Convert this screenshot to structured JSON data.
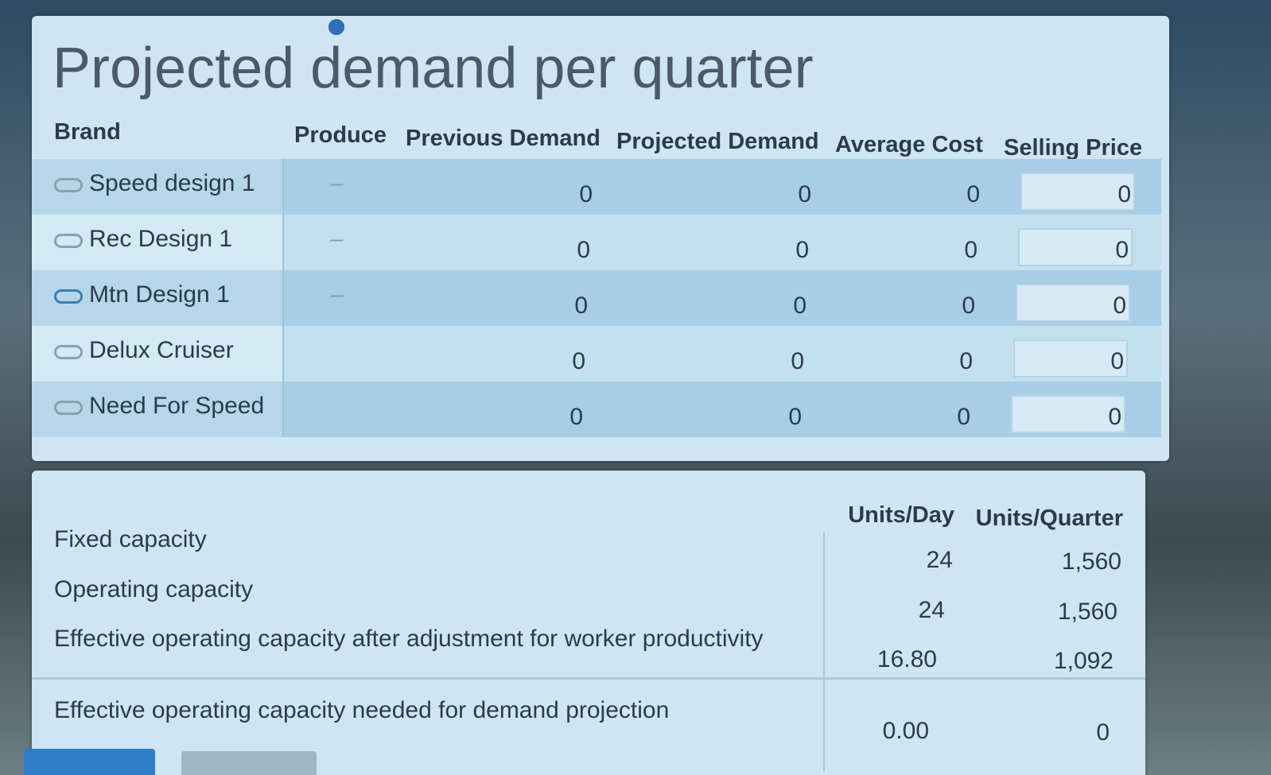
{
  "panel": {
    "title": "Projected demand per quarter",
    "table": {
      "headers": [
        "Brand",
        "Produce",
        "Previous Demand",
        "Projected Demand",
        "Average Cost",
        "Selling Price"
      ],
      "rows": [
        {
          "brand": "Speed design 1",
          "produce": "–",
          "previous": "0",
          "projected": "0",
          "cost": "0",
          "price": "0"
        },
        {
          "brand": "Rec Design 1",
          "produce": "–",
          "previous": "0",
          "projected": "0",
          "cost": "0",
          "price": "0"
        },
        {
          "brand": "Mtn Design 1",
          "produce": "–",
          "previous": "0",
          "projected": "0",
          "cost": "0",
          "price": "0"
        },
        {
          "brand": "Delux Cruiser",
          "previous": "0",
          "projected": "0",
          "cost": "0",
          "price": "0"
        },
        {
          "brand": "Need For Speed",
          "previous": "0",
          "projected": "0",
          "cost": "0",
          "price": "0"
        }
      ]
    }
  },
  "capacity": {
    "headers": [
      "Units/Day",
      "Units/Quarter"
    ],
    "rows": [
      {
        "label": "Fixed capacity",
        "day": "24",
        "quarter": "1,560"
      },
      {
        "label": "Operating capacity",
        "day": "24",
        "quarter": "1,560"
      },
      {
        "label": "Effective operating capacity after adjustment for worker productivity",
        "day": "16.80",
        "quarter": "1,092"
      },
      {
        "label": "Effective operating capacity needed for demand projection",
        "day": "0.00",
        "quarter": "0"
      }
    ]
  }
}
